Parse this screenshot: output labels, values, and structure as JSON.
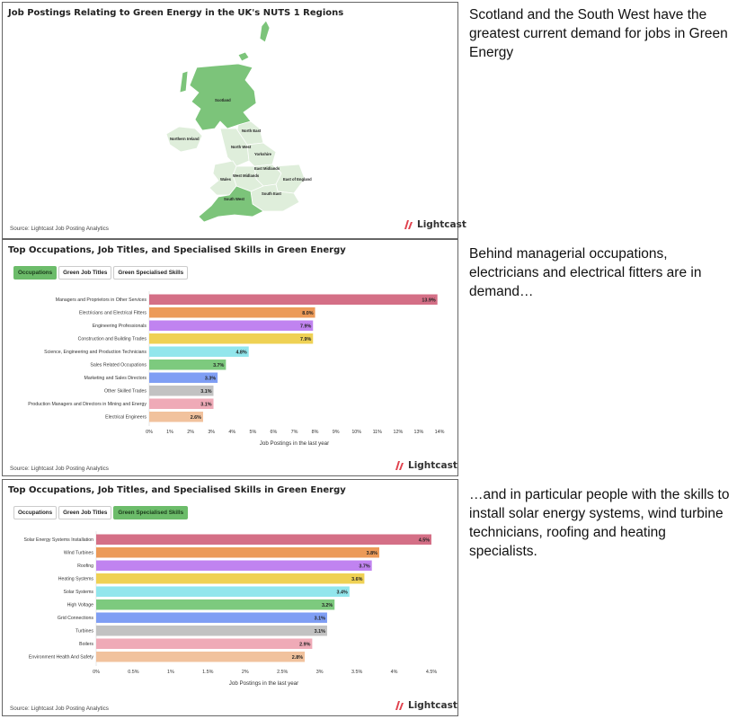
{
  "map_panel": {
    "title": "Job Postings Relating to Green Energy in the UK's NUTS 1 Regions",
    "source": "Source: Lightcast Job Posting Analytics",
    "regions": [
      "Scotland",
      "Northern Ireland",
      "North East",
      "North West",
      "Yorkshire",
      "East Midlands",
      "West Midlands",
      "Wales",
      "East of England",
      "South West",
      "South East"
    ],
    "colors": {
      "high": "#7cc47a",
      "mid": "#b6dcb1",
      "low": "#dfeedb",
      "border": "#ffffff"
    }
  },
  "logo": {
    "text": "Lightcast",
    "color": "#e0414d"
  },
  "occ_panel": {
    "title": "Top Occupations, Job Titles, and Specialised Skills in Green Energy",
    "tabs": [
      {
        "label": "Occupations",
        "active": true
      },
      {
        "label": "Green Job Titles",
        "active": false
      },
      {
        "label": "Green Specialised Skills",
        "active": false
      }
    ],
    "source": "Source: Lightcast Job Posting Analytics"
  },
  "skills_panel": {
    "title": "Top Occupations, Job Titles, and Specialised Skills in Green Energy",
    "tabs": [
      {
        "label": "Occupations",
        "active": false
      },
      {
        "label": "Green Job Titles",
        "active": false
      },
      {
        "label": "Green Specialised Skills",
        "active": true
      }
    ],
    "source": "Source: Lightcast Job Posting Analytics"
  },
  "captions": {
    "map": "Scotland and the South West have the greatest current demand for jobs in Green Energy",
    "occ": "Behind managerial occupations, electricians and electrical fitters are in demand…",
    "skills": "…and in particular people with the skills to install solar energy systems, wind turbine technicians, roofing and heating specialists."
  },
  "chart_data": [
    {
      "type": "bar",
      "orientation": "horizontal",
      "title": "Top Occupations, Job Titles, and Specialised Skills in Green Energy",
      "xlabel": "Job Postings in the last year",
      "categories": [
        "Managers and Proprietors in Other Services",
        "Electricians and Electrical Fitters",
        "Engineering Professionals",
        "Construction and Building Trades",
        "Science, Engineering and Production Technicians",
        "Sales Related Occupations",
        "Marketing and Sales Directors",
        "Other Skilled Trades",
        "Production Managers and Directors in Mining and Energy",
        "Electrical Engineers"
      ],
      "values": [
        13.9,
        8.0,
        7.9,
        7.9,
        4.8,
        3.7,
        3.3,
        3.1,
        3.1,
        2.6
      ],
      "value_labels": [
        "13.9%",
        "8.0%",
        "7.9%",
        "7.9%",
        "4.8%",
        "3.7%",
        "3.3%",
        "3.1%",
        "3.1%",
        "2.6%"
      ],
      "colors": [
        "#d46f86",
        "#ec9a58",
        "#c083f0",
        "#efd154",
        "#92e6ec",
        "#7dca7e",
        "#7f9ef4",
        "#c2c2c2",
        "#efaab7",
        "#f1c29d"
      ],
      "ticks": [
        "0%",
        "1%",
        "2%",
        "3%",
        "4%",
        "5%",
        "6%",
        "7%",
        "8%",
        "9%",
        "10%",
        "11%",
        "12%",
        "13%",
        "14%"
      ],
      "xlim": [
        0,
        14
      ]
    },
    {
      "type": "bar",
      "orientation": "horizontal",
      "title": "Top Occupations, Job Titles, and Specialised Skills in Green Energy",
      "xlabel": "Job Postings in the last year",
      "categories": [
        "Solar Energy Systems Installation",
        "Wind Turbines",
        "Roofing",
        "Heating Systems",
        "Solar Systems",
        "High Voltage",
        "Grid Connections",
        "Turbines",
        "Boilers",
        "Environment Health And Safety"
      ],
      "values": [
        4.5,
        3.8,
        3.7,
        3.6,
        3.4,
        3.2,
        3.1,
        3.1,
        2.9,
        2.8
      ],
      "value_labels": [
        "4.5%",
        "3.8%",
        "3.7%",
        "3.6%",
        "3.4%",
        "3.2%",
        "3.1%",
        "3.1%",
        "2.9%",
        "2.8%"
      ],
      "colors": [
        "#d46f86",
        "#ec9a58",
        "#c083f0",
        "#efd154",
        "#92e6ec",
        "#7dca7e",
        "#7f9ef4",
        "#c2c2c2",
        "#efaab7",
        "#f1c29d"
      ],
      "ticks": [
        "0%",
        "0.5%",
        "1%",
        "1.5%",
        "2%",
        "2.5%",
        "3%",
        "3.5%",
        "4%",
        "4.5%"
      ],
      "xlim": [
        0,
        4.5
      ]
    }
  ]
}
